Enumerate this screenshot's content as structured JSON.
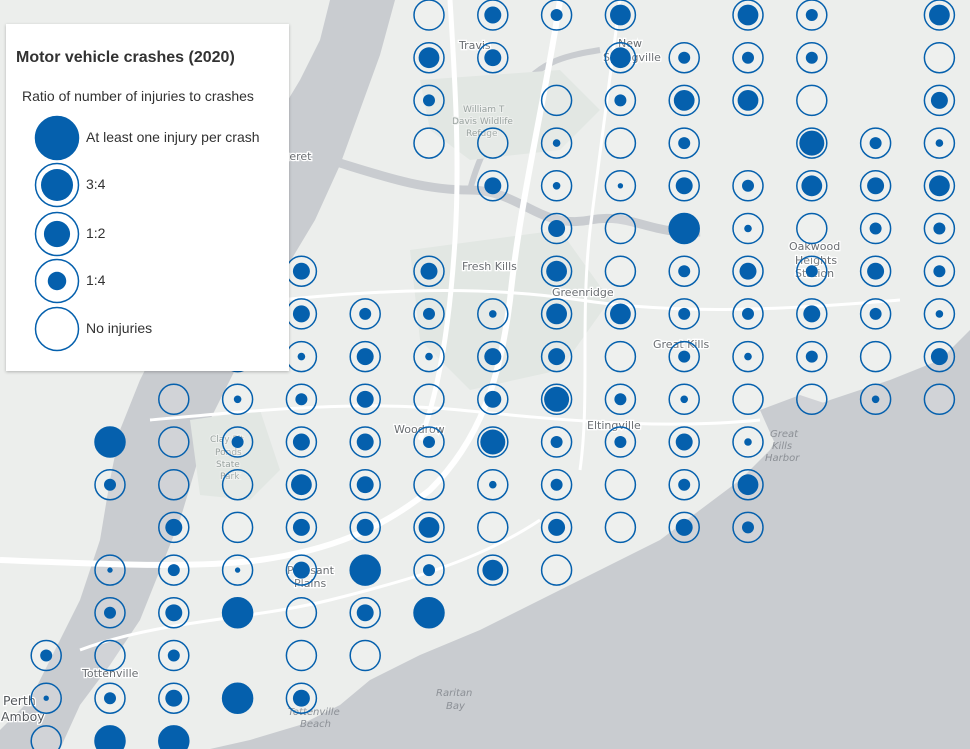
{
  "legend": {
    "title": "Motor vehicle crashes (2020)",
    "subtitle": "Ratio of number of injuries to crashes",
    "items": [
      {
        "label": "At least one injury per crash",
        "ratio": 1.0
      },
      {
        "label": "3:4",
        "ratio": 0.75
      },
      {
        "label": "1:2",
        "ratio": 0.5
      },
      {
        "label": "1:4",
        "ratio": 0.25
      },
      {
        "label": "No injuries",
        "ratio": 0
      }
    ]
  },
  "places": [
    {
      "name": "Travis",
      "cls": "place"
    },
    {
      "name": "New",
      "cls": "place"
    },
    {
      "name": "Springville",
      "cls": "place"
    },
    {
      "name": "teret",
      "cls": "place"
    },
    {
      "name": "Fresh Kills",
      "cls": "place"
    },
    {
      "name": "Greenridge",
      "cls": "place"
    },
    {
      "name": "Oakwood",
      "cls": "place"
    },
    {
      "name": "Heights",
      "cls": "place"
    },
    {
      "name": "Station",
      "cls": "place"
    },
    {
      "name": "Great Kills",
      "cls": "place"
    },
    {
      "name": "Woodrow",
      "cls": "place"
    },
    {
      "name": "Eltingville",
      "cls": "place"
    },
    {
      "name": "Pleasant",
      "cls": "place"
    },
    {
      "name": "Plains",
      "cls": "place"
    },
    {
      "name": "Tottenville",
      "cls": "place"
    },
    {
      "name": "Perth",
      "cls": "place big"
    },
    {
      "name": "Amboy",
      "cls": "place big"
    }
  ],
  "park_labels": [
    "William T",
    "Davis Wildlife",
    "Refuge",
    "Clay Pit",
    "Ponds",
    "State",
    "Park"
  ],
  "water_labels": [
    "Great",
    "Kills",
    "Harbor",
    "Raritan",
    "Bay",
    "Tottenville",
    "Beach"
  ],
  "colors": {
    "symbol": "#0560ad",
    "land": "#eceeec",
    "water": "#c9ccd0",
    "road": "#ffffff"
  },
  "symbols": [
    {
      "col": 0,
      "row": 0,
      "ratio": 0
    },
    {
      "col": 1,
      "row": 0,
      "ratio": 0.5
    },
    {
      "col": 2,
      "row": 0,
      "ratio": 0.25
    },
    {
      "col": 3,
      "row": 0,
      "ratio": 0.75
    },
    {
      "col": 5,
      "row": 0,
      "ratio": 0.75
    },
    {
      "col": 6,
      "row": 0,
      "ratio": 0.25
    },
    {
      "col": 8,
      "row": 0,
      "ratio": 0.75
    },
    {
      "col": 0,
      "row": 1,
      "ratio": 0.75
    },
    {
      "col": 1,
      "row": 1,
      "ratio": 0.5
    },
    {
      "col": 3,
      "row": 1,
      "ratio": 0.75
    },
    {
      "col": 4,
      "row": 1,
      "ratio": 0.25
    },
    {
      "col": 5,
      "row": 1,
      "ratio": 0.25
    },
    {
      "col": 6,
      "row": 1,
      "ratio": 0.25
    },
    {
      "col": 8,
      "row": 1,
      "ratio": 0
    },
    {
      "col": 0,
      "row": 2,
      "ratio": 0.25
    },
    {
      "col": 2,
      "row": 2,
      "ratio": 0
    },
    {
      "col": 3,
      "row": 2,
      "ratio": 0.25
    },
    {
      "col": 4,
      "row": 2,
      "ratio": 0.75
    },
    {
      "col": 5,
      "row": 2,
      "ratio": 0.75
    },
    {
      "col": 6,
      "row": 2,
      "ratio": 0
    },
    {
      "col": 8,
      "row": 2,
      "ratio": 0.5
    },
    {
      "col": 0,
      "row": 3,
      "ratio": 0
    },
    {
      "col": 1,
      "row": 3,
      "ratio": 0
    },
    {
      "col": 2,
      "row": 3,
      "ratio": 0.1
    },
    {
      "col": 3,
      "row": 3,
      "ratio": 0
    },
    {
      "col": 4,
      "row": 3,
      "ratio": 0.25
    },
    {
      "col": 6,
      "row": 3,
      "ratio": 1.0,
      "ring": true
    },
    {
      "col": 7,
      "row": 3,
      "ratio": 0.25
    },
    {
      "col": 8,
      "row": 3,
      "ratio": 0.1
    },
    {
      "col": 1,
      "row": 4,
      "ratio": 0.5
    },
    {
      "col": 2,
      "row": 4,
      "ratio": 0.1
    },
    {
      "col": 3,
      "row": 4,
      "ratio": 0.05
    },
    {
      "col": 4,
      "row": 4,
      "ratio": 0.5
    },
    {
      "col": 5,
      "row": 4,
      "ratio": 0.25
    },
    {
      "col": 6,
      "row": 4,
      "ratio": 0.75
    },
    {
      "col": 7,
      "row": 4,
      "ratio": 0.5
    },
    {
      "col": 8,
      "row": 4,
      "ratio": 0.75
    },
    {
      "col": 2,
      "row": 5,
      "ratio": 0.5
    },
    {
      "col": 3,
      "row": 5,
      "ratio": 0
    },
    {
      "col": 4,
      "row": 5,
      "ratio": 1.0
    },
    {
      "col": 5,
      "row": 5,
      "ratio": 0.1
    },
    {
      "col": 6,
      "row": 5,
      "ratio": 0
    },
    {
      "col": 7,
      "row": 5,
      "ratio": 0.25
    },
    {
      "col": 8,
      "row": 5,
      "ratio": 0.25
    },
    {
      "col": -2,
      "row": 6,
      "ratio": 0.5
    },
    {
      "col": 0,
      "row": 6,
      "ratio": 0.5
    },
    {
      "col": 2,
      "row": 6,
      "ratio": 0.75
    },
    {
      "col": 3,
      "row": 6,
      "ratio": 0
    },
    {
      "col": 4,
      "row": 6,
      "ratio": 0.25
    },
    {
      "col": 5,
      "row": 6,
      "ratio": 0.5
    },
    {
      "col": 6,
      "row": 6,
      "ratio": 0.25
    },
    {
      "col": 7,
      "row": 6,
      "ratio": 0.5
    },
    {
      "col": 8,
      "row": 6,
      "ratio": 0.25
    },
    {
      "col": -3,
      "row": 7,
      "ratio": 0.25
    },
    {
      "col": -2,
      "row": 7,
      "ratio": 0.5
    },
    {
      "col": -1,
      "row": 7,
      "ratio": 0.25
    },
    {
      "col": 0,
      "row": 7,
      "ratio": 0.25
    },
    {
      "col": 1,
      "row": 7,
      "ratio": 0.1
    },
    {
      "col": 2,
      "row": 7,
      "ratio": 0.75
    },
    {
      "col": 3,
      "row": 7,
      "ratio": 0.75
    },
    {
      "col": 4,
      "row": 7,
      "ratio": 0.25
    },
    {
      "col": 5,
      "row": 7,
      "ratio": 0.25
    },
    {
      "col": 6,
      "row": 7,
      "ratio": 0.5
    },
    {
      "col": 7,
      "row": 7,
      "ratio": 0.25
    },
    {
      "col": 8,
      "row": 7,
      "ratio": 0.1
    },
    {
      "col": -3,
      "row": 8,
      "ratio": 0.25
    },
    {
      "col": -2,
      "row": 8,
      "ratio": 0.1
    },
    {
      "col": -1,
      "row": 8,
      "ratio": 0.5
    },
    {
      "col": 0,
      "row": 8,
      "ratio": 0.1
    },
    {
      "col": 1,
      "row": 8,
      "ratio": 0.5
    },
    {
      "col": 2,
      "row": 8,
      "ratio": 0.5
    },
    {
      "col": 3,
      "row": 8,
      "ratio": 0
    },
    {
      "col": 4,
      "row": 8,
      "ratio": 0.25
    },
    {
      "col": 5,
      "row": 8,
      "ratio": 0.1
    },
    {
      "col": 6,
      "row": 8,
      "ratio": 0.25
    },
    {
      "col": 7,
      "row": 8,
      "ratio": 0
    },
    {
      "col": 8,
      "row": 8,
      "ratio": 0.5
    },
    {
      "col": -4,
      "row": 9,
      "ratio": 0
    },
    {
      "col": -3,
      "row": 9,
      "ratio": 0.1
    },
    {
      "col": -2,
      "row": 9,
      "ratio": 0.25
    },
    {
      "col": -1,
      "row": 9,
      "ratio": 0.5
    },
    {
      "col": 0,
      "row": 9,
      "ratio": 0
    },
    {
      "col": 1,
      "row": 9,
      "ratio": 0.5
    },
    {
      "col": 2,
      "row": 9,
      "ratio": 1.0,
      "ring": true
    },
    {
      "col": 3,
      "row": 9,
      "ratio": 0.25
    },
    {
      "col": 4,
      "row": 9,
      "ratio": 0.1
    },
    {
      "col": 5,
      "row": 9,
      "ratio": 0
    },
    {
      "col": 6,
      "row": 9,
      "ratio": 0
    },
    {
      "col": 7,
      "row": 9,
      "ratio": 0.1
    },
    {
      "col": 8,
      "row": 9,
      "ratio": 0
    },
    {
      "col": -5,
      "row": 10,
      "ratio": 1.0
    },
    {
      "col": -4,
      "row": 10,
      "ratio": 0
    },
    {
      "col": -3,
      "row": 10,
      "ratio": 0.25
    },
    {
      "col": -2,
      "row": 10,
      "ratio": 0.5
    },
    {
      "col": -1,
      "row": 10,
      "ratio": 0.5
    },
    {
      "col": 0,
      "row": 10,
      "ratio": 0.25
    },
    {
      "col": 1,
      "row": 10,
      "ratio": 1.0,
      "ring": true
    },
    {
      "col": 2,
      "row": 10,
      "ratio": 0.25
    },
    {
      "col": 3,
      "row": 10,
      "ratio": 0.25
    },
    {
      "col": 4,
      "row": 10,
      "ratio": 0.5
    },
    {
      "col": 5,
      "row": 10,
      "ratio": 0.1
    },
    {
      "col": -5,
      "row": 11,
      "ratio": 0.25
    },
    {
      "col": -4,
      "row": 11,
      "ratio": 0
    },
    {
      "col": -3,
      "row": 11,
      "ratio": 0
    },
    {
      "col": -2,
      "row": 11,
      "ratio": 0.75
    },
    {
      "col": -1,
      "row": 11,
      "ratio": 0.5
    },
    {
      "col": 0,
      "row": 11,
      "ratio": 0
    },
    {
      "col": 1,
      "row": 11,
      "ratio": 0.1
    },
    {
      "col": 2,
      "row": 11,
      "ratio": 0.25
    },
    {
      "col": 3,
      "row": 11,
      "ratio": 0
    },
    {
      "col": 4,
      "row": 11,
      "ratio": 0.25
    },
    {
      "col": 5,
      "row": 11,
      "ratio": 0.75
    },
    {
      "col": -4,
      "row": 12,
      "ratio": 0.5
    },
    {
      "col": -3,
      "row": 12,
      "ratio": 0
    },
    {
      "col": -2,
      "row": 12,
      "ratio": 0.5
    },
    {
      "col": -1,
      "row": 12,
      "ratio": 0.5
    },
    {
      "col": 0,
      "row": 12,
      "ratio": 0.75
    },
    {
      "col": 1,
      "row": 12,
      "ratio": 0
    },
    {
      "col": 2,
      "row": 12,
      "ratio": 0.5
    },
    {
      "col": 3,
      "row": 12,
      "ratio": 0
    },
    {
      "col": 4,
      "row": 12,
      "ratio": 0.5
    },
    {
      "col": 5,
      "row": 12,
      "ratio": 0.25
    },
    {
      "col": -5,
      "row": 13,
      "ratio": 0.05
    },
    {
      "col": -4,
      "row": 13,
      "ratio": 0.25
    },
    {
      "col": -3,
      "row": 13,
      "ratio": 0.05
    },
    {
      "col": -2,
      "row": 13,
      "ratio": 0.5
    },
    {
      "col": -1,
      "row": 13,
      "ratio": 1.0
    },
    {
      "col": 0,
      "row": 13,
      "ratio": 0.25
    },
    {
      "col": 1,
      "row": 13,
      "ratio": 0.75
    },
    {
      "col": 2,
      "row": 13,
      "ratio": 0
    },
    {
      "col": -5,
      "row": 14,
      "ratio": 0.25
    },
    {
      "col": -4,
      "row": 14,
      "ratio": 0.5
    },
    {
      "col": -3,
      "row": 14,
      "ratio": 1.0
    },
    {
      "col": -2,
      "row": 14,
      "ratio": 0
    },
    {
      "col": -1,
      "row": 14,
      "ratio": 0.5
    },
    {
      "col": 0,
      "row": 14,
      "ratio": 1.0
    },
    {
      "col": -6,
      "row": 15,
      "ratio": 0.25
    },
    {
      "col": -5,
      "row": 15,
      "ratio": 0
    },
    {
      "col": -4,
      "row": 15,
      "ratio": 0.25
    },
    {
      "col": -2,
      "row": 15,
      "ratio": 0
    },
    {
      "col": -1,
      "row": 15,
      "ratio": 0
    },
    {
      "col": -6,
      "row": 16,
      "ratio": 0.05
    },
    {
      "col": -5,
      "row": 16,
      "ratio": 0.25
    },
    {
      "col": -4,
      "row": 16,
      "ratio": 0.5
    },
    {
      "col": -3,
      "row": 16,
      "ratio": 1.0
    },
    {
      "col": -2,
      "row": 16,
      "ratio": 0.5
    },
    {
      "col": -6,
      "row": 17,
      "ratio": 0
    },
    {
      "col": -5,
      "row": 17,
      "ratio": 1.0
    },
    {
      "col": -4,
      "row": 17,
      "ratio": 1.0
    }
  ]
}
